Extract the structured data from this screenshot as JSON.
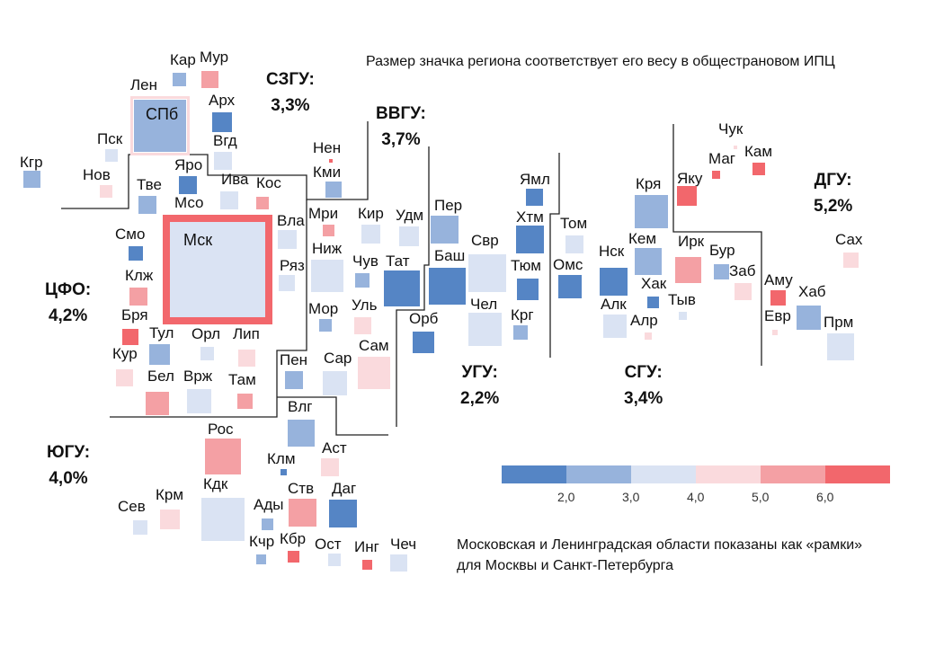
{
  "title": "Размер значка региона соответствует его весу в общестрановом ИПЦ",
  "note": [
    "Московская и Ленинградская области показаны как «рамки»",
    "для Москвы и Санкт-Петербурга"
  ],
  "colors": {
    "1": "#5585c5",
    "2": "#97b3dc",
    "3": "#dae3f3",
    "4": "#fadadd",
    "5": "#f4a0a4",
    "6": "#f2676c"
  },
  "legend": {
    "ticks": [
      "2,0",
      "3,0",
      "4,0",
      "5,0",
      "6,0"
    ]
  },
  "groups": [
    {
      "name": "СЗГУ:",
      "value": "3,3%"
    },
    {
      "name": "ВВГУ:",
      "value": "3,7%"
    },
    {
      "name": "ЦФО:",
      "value": "4,2%"
    },
    {
      "name": "УГУ:",
      "value": "2,2%"
    },
    {
      "name": "СГУ:",
      "value": "3,4%"
    },
    {
      "name": "ДГУ:",
      "value": "5,2%"
    },
    {
      "name": "ЮГУ:",
      "value": "4,0%"
    }
  ],
  "frames": [
    {
      "label": "Лен",
      "bin": 4,
      "inner": "СПб",
      "inner_bin": 2
    },
    {
      "label": "Мсо",
      "bin": 6,
      "inner": "Мск",
      "inner_bin": 3
    }
  ],
  "regions": [
    {
      "label": "Кар",
      "bin": 2
    },
    {
      "label": "Мур",
      "bin": 5
    },
    {
      "label": "Арх",
      "bin": 1
    },
    {
      "label": "Вгд",
      "bin": 3
    },
    {
      "label": "Пск",
      "bin": 3
    },
    {
      "label": "Нов",
      "bin": 4
    },
    {
      "label": "Кгр",
      "bin": 2
    },
    {
      "label": "Яро",
      "bin": 1
    },
    {
      "label": "Тве",
      "bin": 2
    },
    {
      "label": "Ива",
      "bin": 3
    },
    {
      "label": "Кос",
      "bin": 5
    },
    {
      "label": "Вла",
      "bin": 3
    },
    {
      "label": "Ряз",
      "bin": 3
    },
    {
      "label": "Смо",
      "bin": 1
    },
    {
      "label": "Клж",
      "bin": 5
    },
    {
      "label": "Бря",
      "bin": 6
    },
    {
      "label": "Тул",
      "bin": 2
    },
    {
      "label": "Орл",
      "bin": 3
    },
    {
      "label": "Лип",
      "bin": 4
    },
    {
      "label": "Кур",
      "bin": 4
    },
    {
      "label": "Бел",
      "bin": 5
    },
    {
      "label": "Врж",
      "bin": 3
    },
    {
      "label": "Там",
      "bin": 5
    },
    {
      "label": "Нен",
      "bin": 6
    },
    {
      "label": "Кми",
      "bin": 2
    },
    {
      "label": "Мри",
      "bin": 5
    },
    {
      "label": "Кир",
      "bin": 3
    },
    {
      "label": "Удм",
      "bin": 3
    },
    {
      "label": "Ниж",
      "bin": 3
    },
    {
      "label": "Чув",
      "bin": 2
    },
    {
      "label": "Тат",
      "bin": 1
    },
    {
      "label": "Мор",
      "bin": 2
    },
    {
      "label": "Уль",
      "bin": 4
    },
    {
      "label": "Сам",
      "bin": 4
    },
    {
      "label": "Пен",
      "bin": 2
    },
    {
      "label": "Сар",
      "bin": 3
    },
    {
      "label": "Влг",
      "bin": 2
    },
    {
      "label": "Пер",
      "bin": 2
    },
    {
      "label": "Баш",
      "bin": 1
    },
    {
      "label": "Свр",
      "bin": 3
    },
    {
      "label": "Орб",
      "bin": 1
    },
    {
      "label": "Чел",
      "bin": 3
    },
    {
      "label": "Ямл",
      "bin": 1
    },
    {
      "label": "Хтм",
      "bin": 1
    },
    {
      "label": "Тюм",
      "bin": 1
    },
    {
      "label": "Крг",
      "bin": 2
    },
    {
      "label": "Том",
      "bin": 3
    },
    {
      "label": "Омс",
      "bin": 1
    },
    {
      "label": "Нск",
      "bin": 1
    },
    {
      "label": "Алк",
      "bin": 3
    },
    {
      "label": "Кря",
      "bin": 2
    },
    {
      "label": "Кем",
      "bin": 2
    },
    {
      "label": "Хак",
      "bin": 1
    },
    {
      "label": "Алр",
      "bin": 4
    },
    {
      "label": "Тыв",
      "bin": 3
    },
    {
      "label": "Ирк",
      "bin": 5
    },
    {
      "label": "Бур",
      "bin": 2
    },
    {
      "label": "Заб",
      "bin": 4
    },
    {
      "label": "Яку",
      "bin": 6
    },
    {
      "label": "Маг",
      "bin": 6
    },
    {
      "label": "Кам",
      "bin": 6
    },
    {
      "label": "Чук",
      "bin": 4
    },
    {
      "label": "Сах",
      "bin": 4
    },
    {
      "label": "Аму",
      "bin": 6
    },
    {
      "label": "Хаб",
      "bin": 2
    },
    {
      "label": "Евр",
      "bin": 4
    },
    {
      "label": "Прм",
      "bin": 3
    },
    {
      "label": "Рос",
      "bin": 5
    },
    {
      "label": "Кдк",
      "bin": 3
    },
    {
      "label": "Сев",
      "bin": 3
    },
    {
      "label": "Крм",
      "bin": 4
    },
    {
      "label": "Клм",
      "bin": 1
    },
    {
      "label": "Аст",
      "bin": 4
    },
    {
      "label": "Ады",
      "bin": 2
    },
    {
      "label": "Ств",
      "bin": 5
    },
    {
      "label": "Даг",
      "bin": 1
    },
    {
      "label": "Кчр",
      "bin": 2
    },
    {
      "label": "Кбр",
      "bin": 6
    },
    {
      "label": "Ост",
      "bin": 3
    },
    {
      "label": "Инг",
      "bin": 6
    },
    {
      "label": "Чеч",
      "bin": 3
    }
  ]
}
